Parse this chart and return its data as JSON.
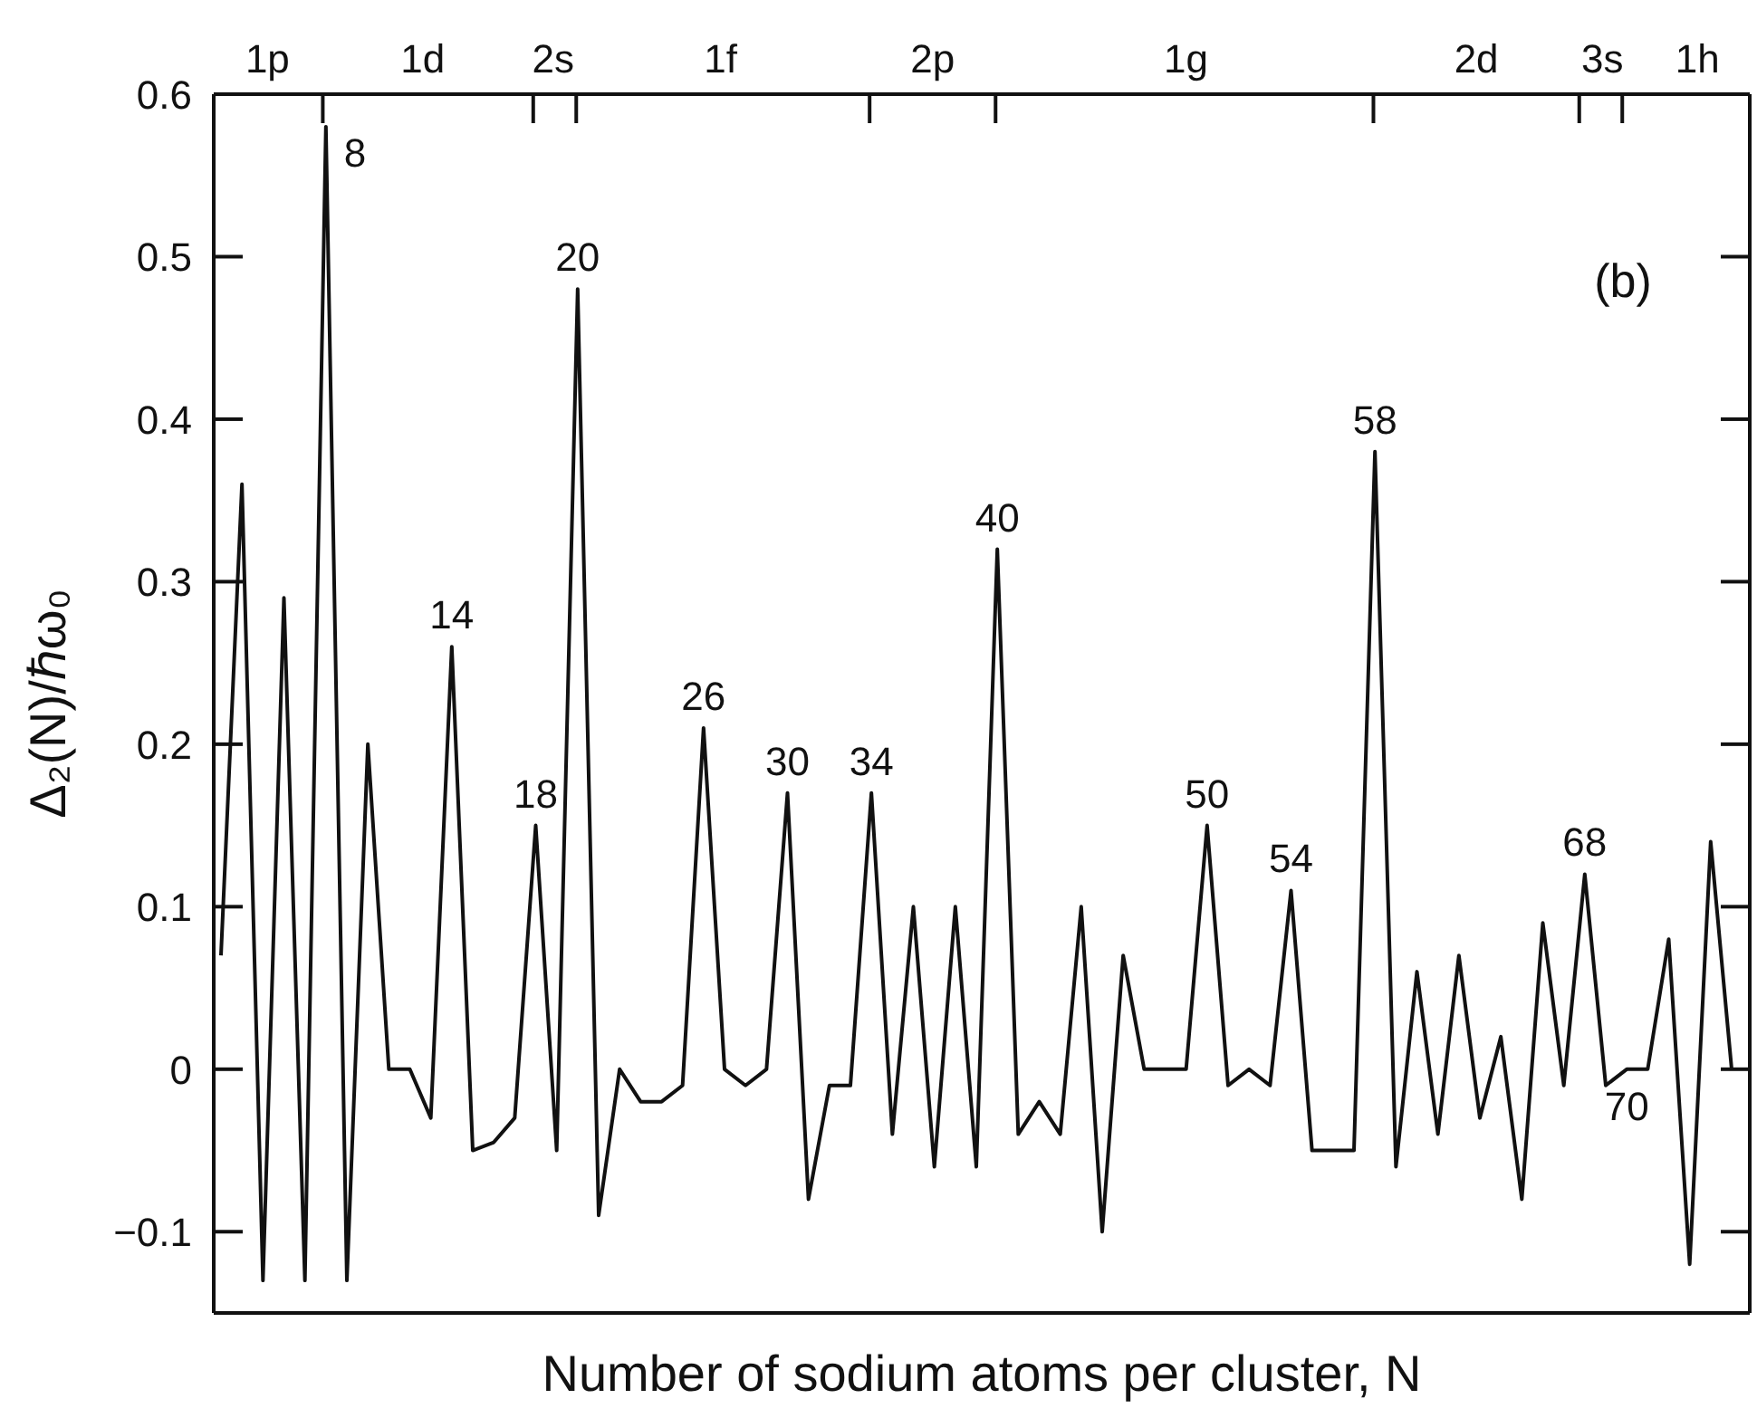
{
  "chart_data": {
    "type": "line",
    "xlabel": "Number of sodium atoms per cluster, N",
    "ylabel": "Δ₂(N)/ℏω₀",
    "categories": [
      null,
      null,
      null,
      null,
      null,
      null,
      null,
      null,
      null,
      null,
      null,
      null,
      null,
      null,
      null,
      null,
      null,
      null,
      null,
      null,
      null,
      null,
      null,
      null,
      null,
      null,
      null,
      null,
      null,
      null,
      null,
      null,
      null,
      null,
      null,
      null,
      null,
      null,
      null,
      null,
      null,
      null,
      null,
      null,
      null,
      null,
      null,
      null,
      null,
      null,
      null,
      null,
      null,
      null,
      null,
      null,
      null,
      null,
      null,
      null,
      null,
      null,
      null,
      null,
      null,
      null,
      null,
      null,
      null,
      null,
      null,
      null,
      null
    ],
    "series": [
      {
        "color": "#111111",
        "values": [
          0.07,
          0.36,
          -0.13,
          0.29,
          -0.13,
          0.58,
          -0.13,
          0.2,
          0.0,
          0.0,
          -0.03,
          0.26,
          -0.05,
          -0.045,
          -0.03,
          0.15,
          -0.05,
          0.48,
          -0.09,
          0.0,
          -0.02,
          -0.02,
          -0.01,
          0.21,
          0.0,
          -0.01,
          0.0,
          0.17,
          -0.08,
          -0.01,
          -0.01,
          0.17,
          -0.04,
          0.1,
          -0.06,
          0.1,
          -0.06,
          0.32,
          -0.04,
          -0.02,
          -0.04,
          0.1,
          -0.1,
          0.07,
          0.0,
          0.0,
          0.0,
          0.15,
          -0.01,
          0.0,
          -0.01,
          0.11,
          -0.05,
          -0.05,
          -0.05,
          0.38,
          -0.06,
          0.06,
          -0.04,
          0.07,
          -0.03,
          0.02,
          -0.08,
          0.09,
          -0.01,
          0.12,
          -0.01,
          0.0,
          0.0,
          0.08,
          -0.12,
          0.14,
          0.0
        ]
      }
    ],
    "ylim": [
      -0.15,
      0.6
    ],
    "yticks": [
      {
        "value": -0.1,
        "label": "−0.1"
      },
      0,
      0.1,
      0.2,
      0.3,
      0.4,
      0.5,
      0.6
    ],
    "annotations": [
      "(b)",
      "1p",
      "1d",
      "2s",
      "1f",
      "2p",
      "1g",
      "2d",
      "3s",
      "1h",
      "8",
      "14",
      "18",
      "20",
      "26",
      "30",
      "34",
      "40",
      "50",
      "54",
      "58",
      "68",
      "70"
    ]
  }
}
